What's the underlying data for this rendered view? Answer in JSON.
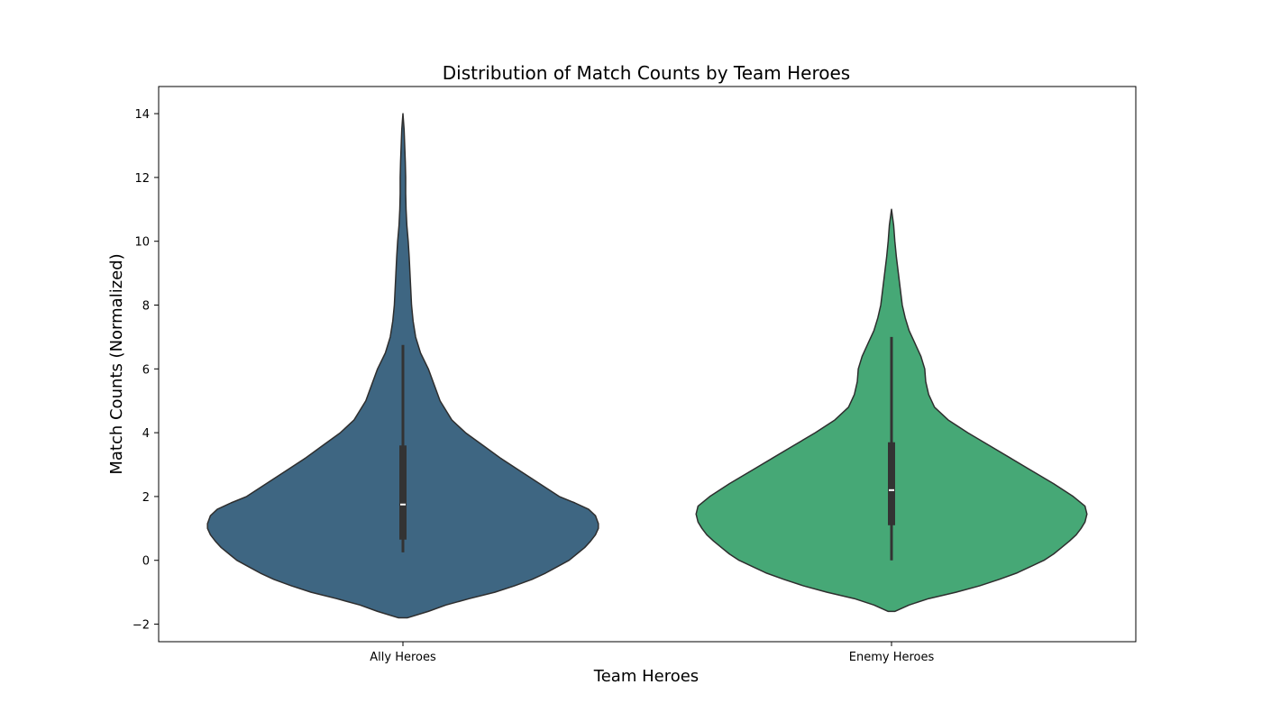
{
  "chart_data": {
    "type": "violin",
    "title": "Distribution of Match Counts by Team Heroes",
    "xlabel": "Team Heroes",
    "ylabel": "Match Counts (Normalized)",
    "ylim": [
      -2.55,
      14.85
    ],
    "yticks": [
      -2,
      0,
      2,
      4,
      6,
      8,
      10,
      12,
      14
    ],
    "ytick_labels": [
      "−2",
      "0",
      "2",
      "4",
      "6",
      "8",
      "10",
      "12",
      "14"
    ],
    "grid": false,
    "categories": [
      "Ally Heroes",
      "Enemy Heroes"
    ],
    "series": [
      {
        "category": "Ally Heroes",
        "color": "#3e6682",
        "range": [
          -1.8,
          14.0
        ],
        "quartiles": [
          0.65,
          1.75,
          3.6
        ],
        "whiskers": [
          0.25,
          6.75
        ],
        "density": [
          [
            -1.8,
            0.024
          ],
          [
            -1.6,
            0.13
          ],
          [
            -1.4,
            0.22
          ],
          [
            -1.2,
            0.34
          ],
          [
            -1.0,
            0.47
          ],
          [
            -0.8,
            0.57
          ],
          [
            -0.6,
            0.66
          ],
          [
            -0.4,
            0.73
          ],
          [
            -0.2,
            0.79
          ],
          [
            0.0,
            0.85
          ],
          [
            0.2,
            0.89
          ],
          [
            0.4,
            0.93
          ],
          [
            0.6,
            0.96
          ],
          [
            0.8,
            0.985
          ],
          [
            1.0,
            1.0
          ],
          [
            1.15,
            1.0
          ],
          [
            1.4,
            0.985
          ],
          [
            1.6,
            0.95
          ],
          [
            1.8,
            0.88
          ],
          [
            2.0,
            0.8
          ],
          [
            2.4,
            0.7
          ],
          [
            2.8,
            0.6
          ],
          [
            3.2,
            0.5
          ],
          [
            3.6,
            0.41
          ],
          [
            4.0,
            0.32
          ],
          [
            4.4,
            0.25
          ],
          [
            5.0,
            0.19
          ],
          [
            5.5,
            0.16
          ],
          [
            6.0,
            0.13
          ],
          [
            6.5,
            0.09
          ],
          [
            7.0,
            0.065
          ],
          [
            7.5,
            0.052
          ],
          [
            8.0,
            0.044
          ],
          [
            8.5,
            0.04
          ],
          [
            9.0,
            0.036
          ],
          [
            9.5,
            0.032
          ],
          [
            10.0,
            0.027
          ],
          [
            10.5,
            0.02
          ],
          [
            11.0,
            0.016
          ],
          [
            11.5,
            0.014
          ],
          [
            12.0,
            0.014
          ],
          [
            12.5,
            0.012
          ],
          [
            13.0,
            0.009
          ],
          [
            13.5,
            0.006
          ],
          [
            14.0,
            0.0
          ]
        ]
      },
      {
        "category": "Enemy Heroes",
        "color": "#46a876",
        "range": [
          -1.6,
          11.0
        ],
        "quartiles": [
          1.1,
          2.2,
          3.7
        ],
        "whiskers": [
          0.0,
          7.0
        ],
        "density": [
          [
            -1.6,
            0.018
          ],
          [
            -1.4,
            0.09
          ],
          [
            -1.2,
            0.19
          ],
          [
            -1.0,
            0.33
          ],
          [
            -0.8,
            0.45
          ],
          [
            -0.6,
            0.55
          ],
          [
            -0.4,
            0.64
          ],
          [
            -0.2,
            0.71
          ],
          [
            0.0,
            0.78
          ],
          [
            0.2,
            0.83
          ],
          [
            0.4,
            0.87
          ],
          [
            0.6,
            0.91
          ],
          [
            0.8,
            0.945
          ],
          [
            1.0,
            0.97
          ],
          [
            1.2,
            0.99
          ],
          [
            1.45,
            1.0
          ],
          [
            1.7,
            0.99
          ],
          [
            2.0,
            0.93
          ],
          [
            2.4,
            0.83
          ],
          [
            2.8,
            0.72
          ],
          [
            3.2,
            0.61
          ],
          [
            3.6,
            0.5
          ],
          [
            4.0,
            0.39
          ],
          [
            4.4,
            0.29
          ],
          [
            4.8,
            0.22
          ],
          [
            5.2,
            0.19
          ],
          [
            5.6,
            0.175
          ],
          [
            6.0,
            0.17
          ],
          [
            6.4,
            0.15
          ],
          [
            6.8,
            0.12
          ],
          [
            7.2,
            0.09
          ],
          [
            7.6,
            0.07
          ],
          [
            8.0,
            0.055
          ],
          [
            8.5,
            0.045
          ],
          [
            9.0,
            0.035
          ],
          [
            9.5,
            0.025
          ],
          [
            10.0,
            0.017
          ],
          [
            10.5,
            0.011
          ],
          [
            11.0,
            0.0
          ]
        ]
      }
    ]
  }
}
